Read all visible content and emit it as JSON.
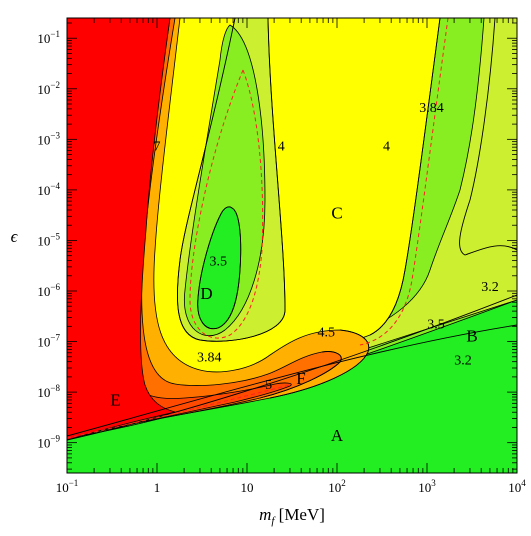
{
  "chart_data": {
    "type": "contour",
    "xlabel": "m_f [MeV]",
    "xlabel_main": "m",
    "xlabel_sub": "f",
    "xlabel_unit": "[MeV]",
    "ylabel": "ϵ",
    "xscale": "log",
    "yscale": "log",
    "xlim_exp": [
      -1,
      4
    ],
    "ylim_exp": [
      -9.6,
      -0.6
    ],
    "x_ticks": [
      {
        "exp": -1,
        "base": "10",
        "sup": "−1"
      },
      {
        "exp": 0,
        "base": "1",
        "sup": ""
      },
      {
        "exp": 1,
        "base": "10",
        "sup": ""
      },
      {
        "exp": 2,
        "base": "10",
        "sup": "2"
      },
      {
        "exp": 3,
        "base": "10",
        "sup": "3"
      },
      {
        "exp": 4,
        "base": "10",
        "sup": "4"
      }
    ],
    "y_ticks": [
      {
        "exp": -1,
        "base": "10",
        "sup": "−1"
      },
      {
        "exp": -2,
        "base": "10",
        "sup": "−2"
      },
      {
        "exp": -3,
        "base": "10",
        "sup": "−3"
      },
      {
        "exp": -4,
        "base": "10",
        "sup": "−4"
      },
      {
        "exp": -5,
        "base": "10",
        "sup": "−5"
      },
      {
        "exp": -6,
        "base": "10",
        "sup": "−6"
      },
      {
        "exp": -7,
        "base": "10",
        "sup": "−7"
      },
      {
        "exp": -8,
        "base": "10",
        "sup": "−8"
      },
      {
        "exp": -9,
        "base": "10",
        "sup": "−9"
      }
    ],
    "colors": {
      "bright_green": "#22ee22",
      "light_green": "#88ee22",
      "yellow_green": "#ccf030",
      "yellow": "#ffff00",
      "light_orange": "#ffb000",
      "orange": "#ff7000",
      "dark_orange": "#ff4a00",
      "red": "#ff0000",
      "dashed_line": "#ff2020"
    },
    "contour_labels": [
      {
        "text": "7",
        "x_exp": 0,
        "y_exp": -3.12
      },
      {
        "text": "4",
        "x_exp": 1.38,
        "y_exp": -3.12
      },
      {
        "text": "4",
        "x_exp": 2.55,
        "y_exp": -3.12
      },
      {
        "text": "3.84",
        "x_exp": 3.05,
        "y_exp": -2.36
      },
      {
        "text": "3.5",
        "x_exp": 0.68,
        "y_exp": -5.4
      },
      {
        "text": "3.2",
        "x_exp": 3.7,
        "y_exp": -5.9
      },
      {
        "text": "3.5",
        "x_exp": 3.1,
        "y_exp": -6.64
      },
      {
        "text": "3.84",
        "x_exp": 0.58,
        "y_exp": -7.3
      },
      {
        "text": "4.5",
        "x_exp": 1.88,
        "y_exp": -6.8
      },
      {
        "text": "5",
        "x_exp": 1.24,
        "y_exp": -7.84
      },
      {
        "text": "3.2",
        "x_exp": 3.4,
        "y_exp": -7.35
      }
    ],
    "region_labels": [
      {
        "text": "A",
        "x_exp": 2.0,
        "y_exp": -8.85
      },
      {
        "text": "B",
        "x_exp": 3.5,
        "y_exp": -6.88
      },
      {
        "text": "C",
        "x_exp": 2.0,
        "y_exp": -4.45
      },
      {
        "text": "D",
        "x_exp": 0.55,
        "y_exp": -6.04
      },
      {
        "text": "E",
        "x_exp": -0.46,
        "y_exp": -8.15
      },
      {
        "text": "F",
        "x_exp": 1.6,
        "y_exp": -7.72
      }
    ]
  }
}
